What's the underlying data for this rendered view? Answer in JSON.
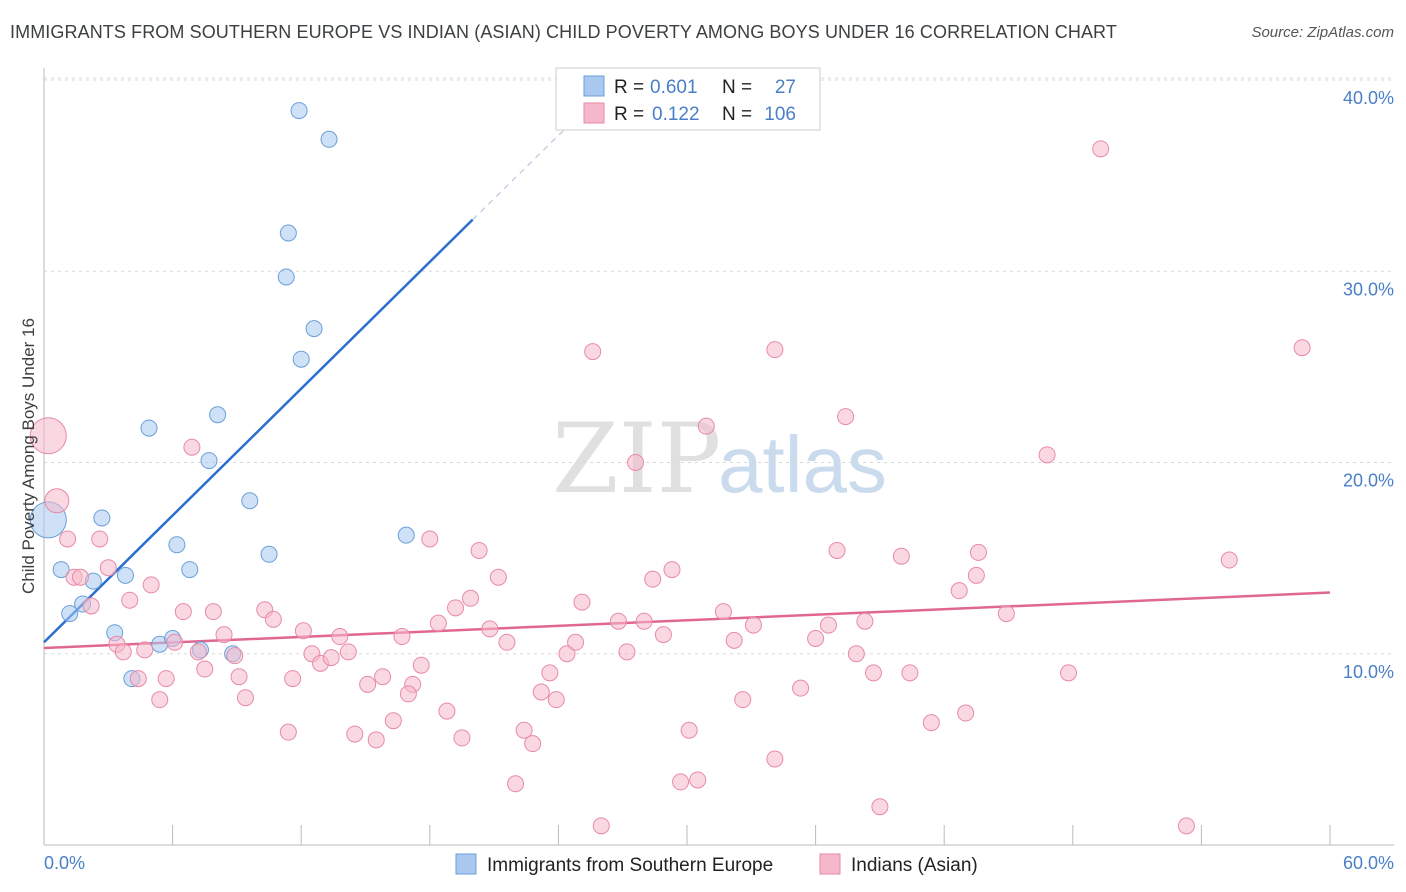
{
  "title": "IMMIGRANTS FROM SOUTHERN EUROPE VS INDIAN (ASIAN) CHILD POVERTY AMONG BOYS UNDER 16 CORRELATION CHART",
  "source": "Source: ZipAtlas.com",
  "watermark": {
    "zip": "ZIP",
    "atlas": "atlas"
  },
  "colors": {
    "blue_fill": "#a8c8f0",
    "blue_stroke": "#6a9fd8",
    "blue_line": "#2a6fcf",
    "pink_fill": "#f5b8cb",
    "pink_stroke": "#e88aa8",
    "pink_line": "#e06890",
    "tick_text": "#4a7fc8",
    "grid": "#d8d8d8",
    "axis": "#bbbbbb"
  },
  "legend": {
    "rows": [
      {
        "r_label": "R =",
        "r_value": "0.601",
        "n_label": "N =",
        "n_value": "27",
        "color": "blue"
      },
      {
        "r_label": "R =",
        "r_value": "0.122",
        "n_label": "N =",
        "n_value": "106",
        "color": "pink"
      }
    ]
  },
  "bottom_legend": [
    "Immigrants from Southern Europe",
    "Indians (Asian)"
  ],
  "chart_data": {
    "type": "scatter",
    "title": "IMMIGRANTS FROM SOUTHERN EUROPE VS INDIAN (ASIAN) CHILD POVERTY AMONG BOYS UNDER 16 CORRELATION CHART",
    "xlabel": "",
    "ylabel": "Child Poverty Among Boys Under 16",
    "xlim": [
      0,
      60
    ],
    "ylim": [
      0,
      40
    ],
    "x_tick_labels": [
      "0.0%",
      "60.0%"
    ],
    "y_ticks": [
      10,
      20,
      30,
      40
    ],
    "y_tick_labels": [
      "10.0%",
      "20.0%",
      "30.0%",
      "40.0%"
    ],
    "grid": "horizontal dashed",
    "series": [
      {
        "name": "Immigrants from Southern Europe",
        "color": "blue",
        "r": 0.601,
        "n": 27,
        "trend": {
          "x": [
            0,
            20
          ],
          "y": [
            10.6,
            32.7
          ],
          "dashed_extension_to": [
            25,
            38.2
          ]
        },
        "points": [
          [
            0.2,
            17.0,
            "big"
          ],
          [
            0.8,
            14.4
          ],
          [
            1.2,
            12.1
          ],
          [
            1.8,
            12.6
          ],
          [
            2.3,
            13.8
          ],
          [
            2.7,
            17.1
          ],
          [
            3.3,
            11.1
          ],
          [
            3.8,
            14.1
          ],
          [
            4.1,
            8.7
          ],
          [
            4.9,
            21.8
          ],
          [
            5.4,
            10.5
          ],
          [
            6.0,
            10.8
          ],
          [
            6.2,
            15.7
          ],
          [
            6.8,
            14.4
          ],
          [
            7.3,
            10.2
          ],
          [
            7.7,
            20.1
          ],
          [
            8.1,
            22.5
          ],
          [
            8.8,
            10.0
          ],
          [
            9.6,
            18.0
          ],
          [
            10.5,
            15.2
          ],
          [
            11.3,
            29.7
          ],
          [
            11.4,
            32.0
          ],
          [
            12.0,
            25.4
          ],
          [
            12.6,
            27.0
          ],
          [
            13.3,
            36.9
          ],
          [
            11.9,
            38.4
          ],
          [
            16.9,
            16.2
          ]
        ]
      },
      {
        "name": "Indians (Asian)",
        "color": "pink",
        "r": 0.122,
        "n": 106,
        "trend": {
          "x": [
            0,
            60
          ],
          "y": [
            10.3,
            13.2
          ]
        },
        "points": [
          [
            0.2,
            21.4,
            "big"
          ],
          [
            0.6,
            18.0,
            "mid"
          ],
          [
            1.1,
            16.0
          ],
          [
            1.4,
            14.0
          ],
          [
            1.7,
            14.0
          ],
          [
            2.2,
            12.5
          ],
          [
            2.6,
            16.0
          ],
          [
            3.0,
            14.5
          ],
          [
            3.4,
            10.5
          ],
          [
            3.7,
            10.1
          ],
          [
            4.0,
            12.8
          ],
          [
            4.4,
            8.7
          ],
          [
            4.7,
            10.2
          ],
          [
            5.0,
            13.6
          ],
          [
            5.4,
            7.6
          ],
          [
            5.7,
            8.7
          ],
          [
            6.1,
            10.6
          ],
          [
            6.5,
            12.2
          ],
          [
            6.9,
            20.8
          ],
          [
            7.2,
            10.1
          ],
          [
            7.9,
            12.2
          ],
          [
            7.5,
            9.2
          ],
          [
            8.4,
            11.0
          ],
          [
            9.1,
            8.8
          ],
          [
            9.4,
            7.7
          ],
          [
            8.9,
            9.9
          ],
          [
            10.3,
            12.3
          ],
          [
            10.7,
            11.8
          ],
          [
            11.4,
            5.9
          ],
          [
            11.6,
            8.7
          ],
          [
            12.1,
            11.2
          ],
          [
            12.5,
            10.0
          ],
          [
            12.9,
            9.5
          ],
          [
            13.4,
            9.8
          ],
          [
            13.8,
            10.9
          ],
          [
            14.2,
            10.1
          ],
          [
            14.5,
            5.8
          ],
          [
            15.1,
            8.4
          ],
          [
            15.5,
            5.5
          ],
          [
            15.8,
            8.8
          ],
          [
            16.3,
            6.5
          ],
          [
            16.7,
            10.9
          ],
          [
            17.2,
            8.4
          ],
          [
            17.6,
            9.4
          ],
          [
            18.0,
            16.0
          ],
          [
            18.4,
            11.6
          ],
          [
            18.8,
            7.0
          ],
          [
            19.2,
            12.4
          ],
          [
            19.5,
            5.6
          ],
          [
            19.9,
            12.9
          ],
          [
            20.3,
            15.4
          ],
          [
            20.8,
            11.3
          ],
          [
            21.2,
            14.0
          ],
          [
            21.6,
            10.6
          ],
          [
            22.0,
            3.2
          ],
          [
            22.4,
            6.0
          ],
          [
            22.8,
            5.3
          ],
          [
            23.2,
            8.0
          ],
          [
            23.6,
            9.0
          ],
          [
            23.9,
            7.6
          ],
          [
            24.4,
            10.0
          ],
          [
            24.8,
            10.6
          ],
          [
            25.1,
            12.7
          ],
          [
            25.6,
            25.8
          ],
          [
            26.0,
            1.0
          ],
          [
            26.8,
            11.7
          ],
          [
            27.2,
            10.1
          ],
          [
            27.6,
            20.0
          ],
          [
            28.0,
            11.7
          ],
          [
            28.4,
            13.9
          ],
          [
            28.9,
            11.0
          ],
          [
            29.3,
            14.4
          ],
          [
            29.7,
            3.3
          ],
          [
            30.1,
            6.0
          ],
          [
            30.5,
            3.4
          ],
          [
            30.9,
            21.9
          ],
          [
            31.7,
            12.2
          ],
          [
            32.2,
            10.7
          ],
          [
            32.6,
            7.6
          ],
          [
            33.1,
            11.5
          ],
          [
            34.1,
            4.5
          ],
          [
            34.1,
            25.9
          ],
          [
            35.3,
            8.2
          ],
          [
            36.0,
            10.8
          ],
          [
            36.6,
            11.5
          ],
          [
            37.0,
            15.4
          ],
          [
            37.4,
            22.4
          ],
          [
            37.9,
            10.0
          ],
          [
            38.3,
            11.7
          ],
          [
            38.7,
            9.0
          ],
          [
            39.0,
            2.0
          ],
          [
            40.0,
            15.1
          ],
          [
            40.4,
            9.0
          ],
          [
            41.4,
            6.4
          ],
          [
            42.7,
            13.3
          ],
          [
            43.0,
            6.9
          ],
          [
            43.5,
            14.1
          ],
          [
            43.6,
            15.3
          ],
          [
            44.9,
            12.1
          ],
          [
            46.8,
            20.4
          ],
          [
            47.8,
            9.0
          ],
          [
            49.3,
            36.4
          ],
          [
            53.3,
            1.0
          ],
          [
            55.3,
            14.9
          ],
          [
            58.7,
            26.0
          ],
          [
            17.0,
            7.9
          ]
        ]
      }
    ]
  }
}
